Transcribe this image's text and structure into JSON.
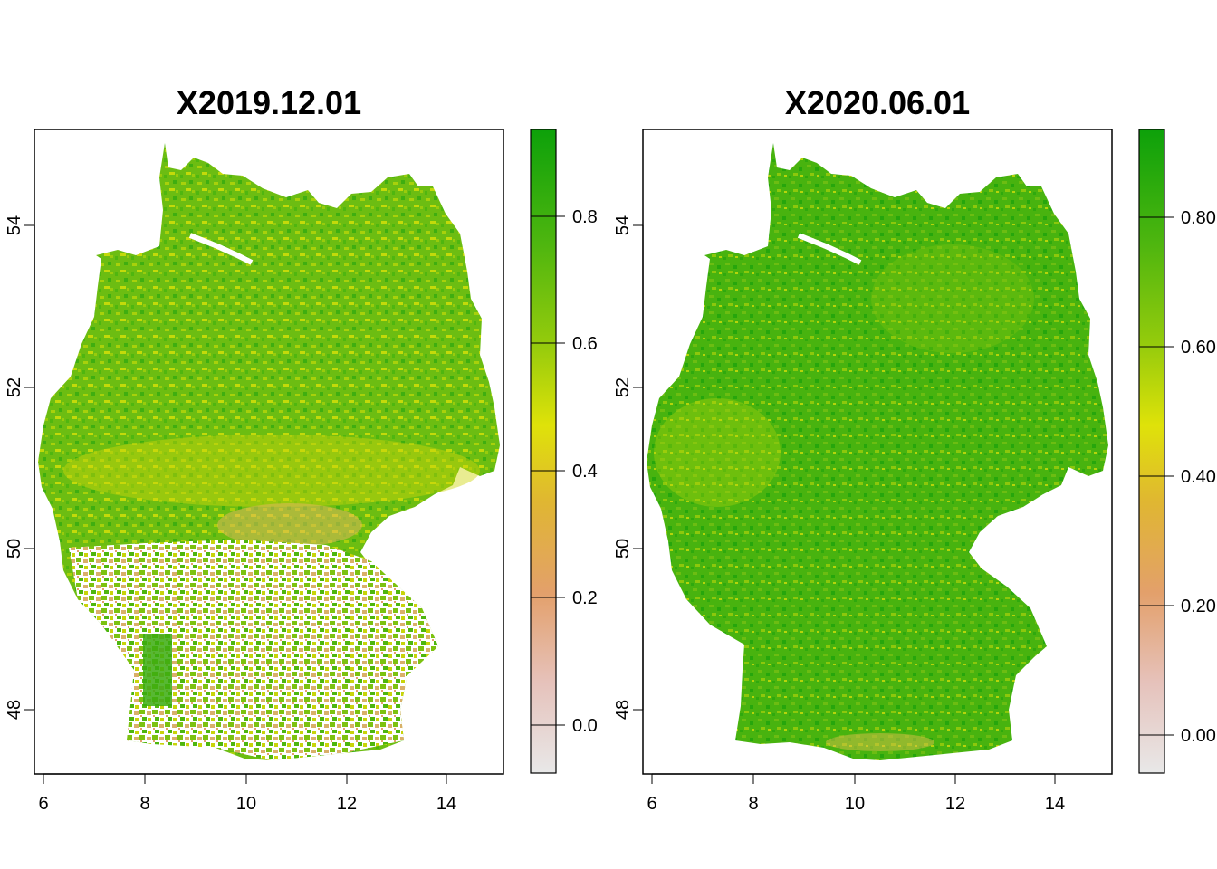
{
  "colors": {
    "ramp": [
      "#e8e8e8",
      "#e6c2bb",
      "#e3a06b",
      "#e0b632",
      "#dfe209",
      "#98cc0c",
      "#4fb60f",
      "#0da10a"
    ],
    "frame": "#000000"
  },
  "maps": [
    {
      "title": "X2019.12.01",
      "x_ticks": [
        "6",
        "8",
        "10",
        "12",
        "14"
      ],
      "y_ticks": [
        "48",
        "50",
        "52",
        "54"
      ],
      "legend_ticks": [
        "0.0",
        "0.2",
        "0.4",
        "0.6",
        "0.8"
      ]
    },
    {
      "title": "X2020.06.01",
      "x_ticks": [
        "6",
        "8",
        "10",
        "12",
        "14"
      ],
      "y_ticks": [
        "48",
        "50",
        "52",
        "54"
      ],
      "legend_ticks": [
        "0.00",
        "0.20",
        "0.40",
        "0.60",
        "0.80"
      ]
    }
  ]
}
